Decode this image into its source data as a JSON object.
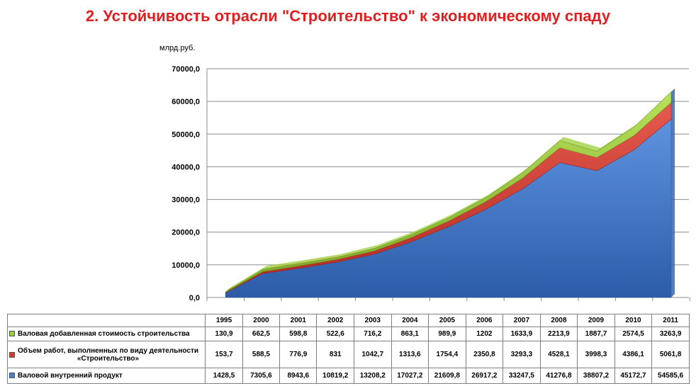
{
  "title": "2. Устойчивость отрасли \"Строительство\" к экономическому спаду",
  "unit_label": "млрд.руб.",
  "chart_data": {
    "type": "area",
    "stacked": true,
    "categories": [
      "1995",
      "2000",
      "2001",
      "2002",
      "2003",
      "2004",
      "2005",
      "2006",
      "2007",
      "2008",
      "2009",
      "2010",
      "2011"
    ],
    "ylim": [
      0,
      70000
    ],
    "yticks": [
      "0,0",
      "10000,0",
      "20000,0",
      "30000,0",
      "40000,0",
      "50000,0",
      "60000,0",
      "70000,0"
    ],
    "ylabel": "млрд.руб.",
    "grid": true,
    "series": [
      {
        "name": "Валовой внутренний продукт",
        "color": "#4a7fd0",
        "values": [
          1428.5,
          7305.6,
          8943.6,
          10819.2,
          13208.2,
          17027.2,
          21609.8,
          26917.2,
          33247.5,
          41276.8,
          38807.2,
          45172.7,
          54585.6
        ],
        "labels": [
          "1428,5",
          "7305,6",
          "8943,6",
          "10819,2",
          "13208,2",
          "17027,2",
          "21609,8",
          "26917,2",
          "33247,5",
          "41276,8",
          "38807,2",
          "45172,7",
          "54585,6"
        ]
      },
      {
        "name": "Объем работ, выполненных по виду деятельности «Строительство»",
        "color": "#d83a32",
        "values": [
          153.7,
          588.5,
          776.9,
          831,
          1042.7,
          1313.6,
          1754.4,
          2350.8,
          3293.3,
          4528.1,
          3998.3,
          4386.1,
          5061.8
        ],
        "labels": [
          "153,7",
          "588,5",
          "776,9",
          "831",
          "1042,7",
          "1313,6",
          "1754,4",
          "2350,8",
          "3293,3",
          "4528,1",
          "3998,3",
          "4386,1",
          "5061,8"
        ]
      },
      {
        "name": "Валовая добавленная стоимость строительства",
        "color": "#9acd3a",
        "values": [
          130.9,
          662.5,
          598.8,
          522.6,
          716.2,
          863.1,
          989.9,
          1202,
          1633.9,
          2213.9,
          1887.7,
          2574.5,
          3263.9
        ],
        "labels": [
          "130,9",
          "662,5",
          "598,8",
          "522,6",
          "716,2",
          "863,1",
          "989,9",
          "1202",
          "1633,9",
          "2213,9",
          "1887,7",
          "2574,5",
          "3263,9"
        ]
      }
    ],
    "table_row_labels": {
      "r1": "Валовая добавленная стоимость строительства",
      "r2a": "Объем работ, выполненных по виду деятельности",
      "r2b": "«Строительство»",
      "r3": "Валовой внутренний продукт"
    }
  }
}
